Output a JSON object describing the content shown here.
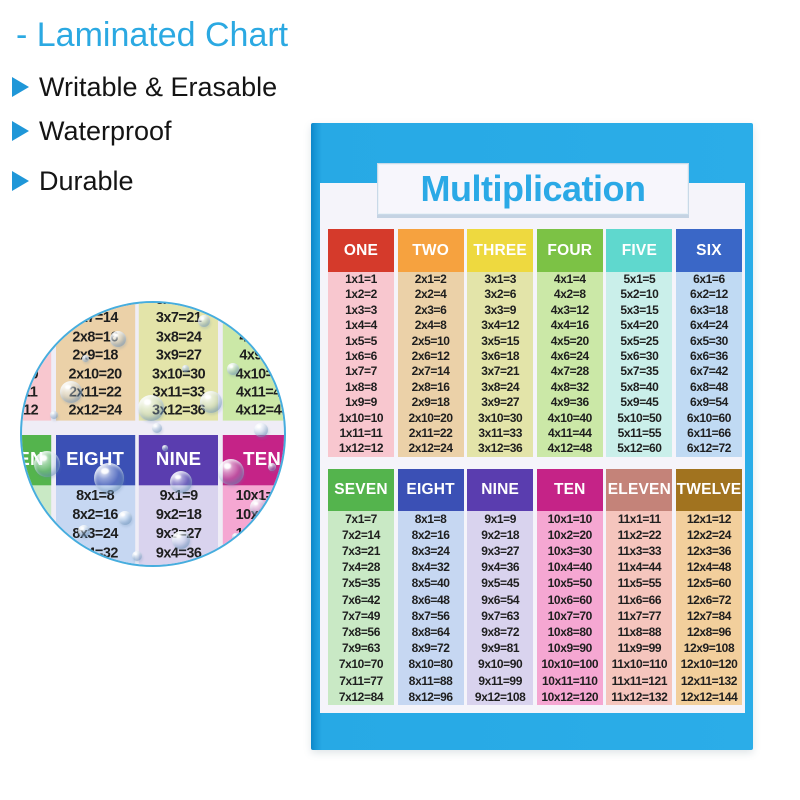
{
  "annotations": {
    "title": "- Laminated Chart",
    "features": [
      "Writable & Erasable",
      "Waterproof",
      "Durable"
    ],
    "accent_color": "#2BA9E2"
  },
  "icons": {
    "bullet": "triangle-right-icon",
    "droplet": "water-droplet-icon"
  },
  "poster": {
    "frame_color": "#27A9E5",
    "title_color": "#2BA9E6"
  },
  "chart_data": {
    "type": "table",
    "title": "Multiplication",
    "layout": "two stacked grids of 6 columns, factors 1-6 on top and 7-12 below, each column lists products x1 through x12",
    "tables": [
      {
        "columns": [
          {
            "label": "ONE",
            "header_color": "#D53A2B",
            "body_color": "#F8C7CF",
            "cells": [
              "1x1=1",
              "1x2=2",
              "1x3=3",
              "1x4=4",
              "1x5=5",
              "1x6=6",
              "1x7=7",
              "1x8=8",
              "1x9=9",
              "1x10=10",
              "1x11=11",
              "1x12=12"
            ]
          },
          {
            "label": "TWO",
            "header_color": "#F6A23F",
            "body_color": "#EBD1A8",
            "cells": [
              "2x1=2",
              "2x2=4",
              "2x3=6",
              "2x4=8",
              "2x5=10",
              "2x6=12",
              "2x7=14",
              "2x8=16",
              "2x9=18",
              "2x10=20",
              "2x11=22",
              "2x12=24"
            ]
          },
          {
            "label": "THREE",
            "header_color": "#EED93F",
            "body_color": "#E3E4A9",
            "cells": [
              "3x1=3",
              "3x2=6",
              "3x3=9",
              "3x4=12",
              "3x5=15",
              "3x6=18",
              "3x7=21",
              "3x8=24",
              "3x9=27",
              "3x10=30",
              "3x11=33",
              "3x12=36"
            ]
          },
          {
            "label": "FOUR",
            "header_color": "#7CC245",
            "body_color": "#CBE8A7",
            "cells": [
              "4x1=4",
              "4x2=8",
              "4x3=12",
              "4x4=16",
              "4x5=20",
              "4x6=24",
              "4x7=28",
              "4x8=32",
              "4x9=36",
              "4x10=40",
              "4x11=44",
              "4x12=48"
            ]
          },
          {
            "label": "FIVE",
            "header_color": "#5FD8CE",
            "body_color": "#CAEFEA",
            "cells": [
              "5x1=5",
              "5x2=10",
              "5x3=15",
              "5x4=20",
              "5x5=25",
              "5x6=30",
              "5x7=35",
              "5x8=40",
              "5x9=45",
              "5x10=50",
              "5x11=55",
              "5x12=60"
            ]
          },
          {
            "label": "SIX",
            "header_color": "#3A67C7",
            "body_color": "#C0DAF3",
            "cells": [
              "6x1=6",
              "6x2=12",
              "6x3=18",
              "6x4=24",
              "6x5=30",
              "6x6=36",
              "6x7=42",
              "6x8=48",
              "6x9=54",
              "6x10=60",
              "6x11=66",
              "6x12=72"
            ]
          }
        ]
      },
      {
        "columns": [
          {
            "label": "SEVEN",
            "header_color": "#54B44D",
            "body_color": "#C9E9C5",
            "cells": [
              "7x1=7",
              "7x2=14",
              "7x3=21",
              "7x4=28",
              "7x5=35",
              "7x6=42",
              "7x7=49",
              "7x8=56",
              "7x9=63",
              "7x10=70",
              "7x11=77",
              "7x12=84"
            ]
          },
          {
            "label": "EIGHT",
            "header_color": "#3B50B5",
            "body_color": "#C6D7F2",
            "cells": [
              "8x1=8",
              "8x2=16",
              "8x3=24",
              "8x4=32",
              "8x5=40",
              "8x6=48",
              "8x7=56",
              "8x8=64",
              "8x9=72",
              "8x10=80",
              "8x11=88",
              "8x12=96"
            ]
          },
          {
            "label": "NINE",
            "header_color": "#5A3DAF",
            "body_color": "#D9D3EE",
            "cells": [
              "9x1=9",
              "9x2=18",
              "9x3=27",
              "9x4=36",
              "9x5=45",
              "9x6=54",
              "9x7=63",
              "9x8=72",
              "9x9=81",
              "9x10=90",
              "9x11=99",
              "9x12=108"
            ]
          },
          {
            "label": "TEN",
            "header_color": "#C52387",
            "body_color": "#F5A7D2",
            "cells": [
              "10x1=10",
              "10x2=20",
              "10x3=30",
              "10x4=40",
              "10x5=50",
              "10x6=60",
              "10x7=70",
              "10x8=80",
              "10x9=90",
              "10x10=100",
              "10x11=110",
              "10x12=120"
            ]
          },
          {
            "label": "ELEVEN",
            "header_color": "#C48379",
            "body_color": "#F5C5BD",
            "cells": [
              "11x1=11",
              "11x2=22",
              "11x3=33",
              "11x4=44",
              "11x5=55",
              "11x6=66",
              "11x7=77",
              "11x8=88",
              "11x9=99",
              "11x10=110",
              "11x11=121",
              "11x12=132"
            ]
          },
          {
            "label": "TWELVE",
            "header_color": "#A1731F",
            "body_color": "#F2CF9C",
            "cells": [
              "12x1=12",
              "12x2=24",
              "12x3=36",
              "12x4=48",
              "12x5=60",
              "12x6=72",
              "12x7=84",
              "12x8=96",
              "12x9=108",
              "12x10=120",
              "12x11=132",
              "12x12=144"
            ]
          }
        ]
      }
    ]
  }
}
